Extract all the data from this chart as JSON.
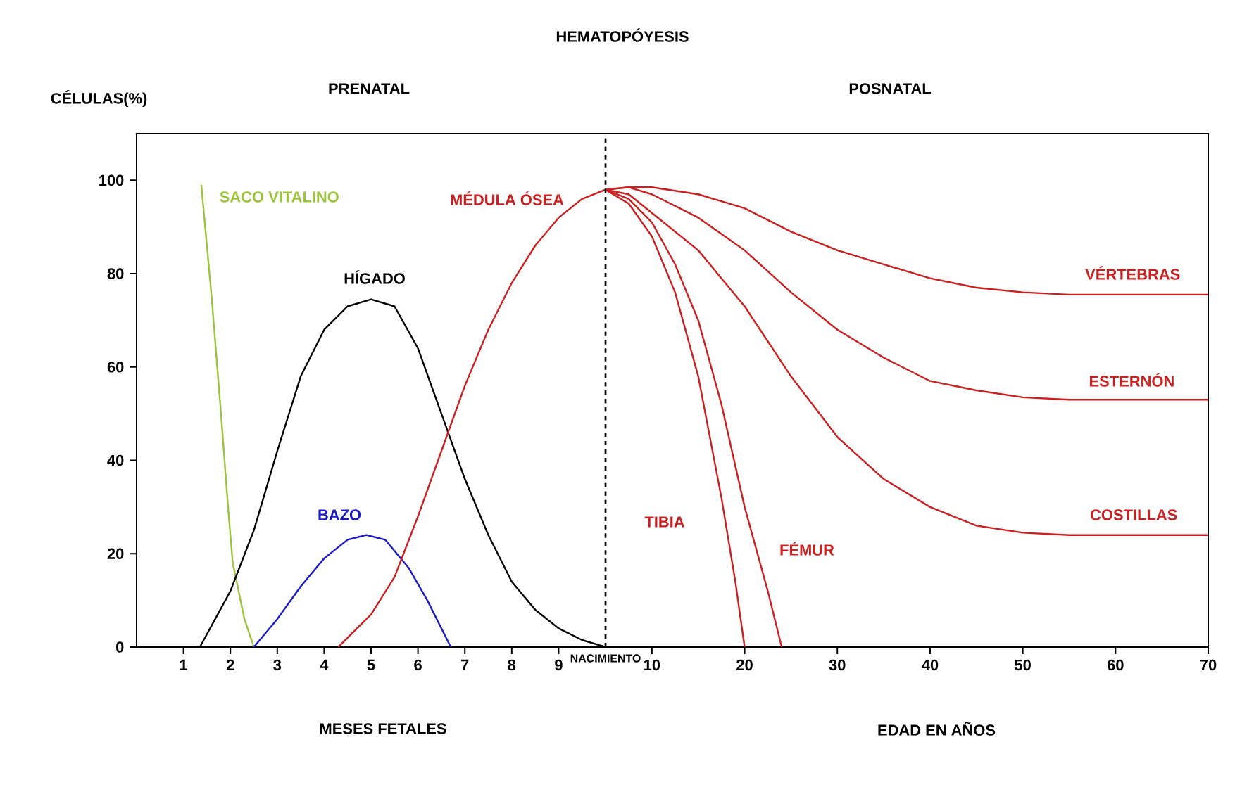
{
  "chart_data": [
    {
      "type": "line",
      "title": "HEMATOPÓYESIS",
      "ylabel": "CÉLULAS(%)",
      "xlim": [
        0,
        10
      ],
      "ylim": [
        0,
        110
      ],
      "xticks": [
        1,
        2,
        3,
        4,
        5,
        6,
        7,
        8,
        9
      ],
      "yticks": [
        0,
        20,
        40,
        60,
        80,
        100
      ],
      "ref_lines": [
        {
          "axis": "x",
          "value": 10,
          "label": "NACIMIENTO",
          "line_style": "dashed",
          "color": "#000000"
        }
      ],
      "annotations": [
        "PRENATAL",
        "MESES FETALES"
      ],
      "series": [
        {
          "name": "SACO VITALINO",
          "color": "#9bc43c",
          "x": [
            1.38,
            1.6,
            1.8,
            1.95,
            2.05,
            2.3,
            2.5
          ],
          "values": [
            99,
            75,
            50,
            30,
            18,
            6,
            0
          ]
        },
        {
          "name": "HÍGADO",
          "color": "#000000",
          "x": [
            1.35,
            2,
            2.5,
            3,
            3.5,
            4,
            4.5,
            5,
            5.5,
            6,
            6.5,
            7,
            7.5,
            8,
            8.5,
            9,
            9.5,
            10
          ],
          "values": [
            0,
            12,
            25,
            42,
            58,
            68,
            73,
            74.5,
            73,
            64,
            50,
            36,
            24,
            14,
            8,
            4,
            1.5,
            0
          ]
        },
        {
          "name": "BAZO",
          "color": "#1a1acc",
          "x": [
            2.5,
            3,
            3.5,
            4,
            4.5,
            4.9,
            5.3,
            5.8,
            6.2,
            6.7
          ],
          "values": [
            0,
            6,
            13,
            19,
            23,
            24,
            23,
            17,
            10,
            0
          ]
        },
        {
          "name": "MÉDULA ÓSEA",
          "color": "#cc1f1f",
          "x": [
            4.3,
            5,
            5.5,
            6,
            6.5,
            7,
            7.5,
            8,
            8.5,
            9,
            9.5,
            10
          ],
          "values": [
            0,
            7,
            15,
            28,
            42,
            56,
            68,
            78,
            86,
            92,
            96,
            98
          ]
        }
      ]
    },
    {
      "type": "line",
      "xlim": [
        5,
        70
      ],
      "ylim": [
        0,
        110
      ],
      "tick_labels": "x",
      "xticks": [
        10,
        20,
        30,
        40,
        50,
        60,
        70
      ],
      "ref_lines": [
        {
          "axis": "x",
          "value": 5,
          "line_style": "dashed",
          "color": "#000000"
        }
      ],
      "annotations": [
        "POSNATAL",
        "EDAD EN AÑOS"
      ],
      "series": [
        {
          "name": "VÉRTEBRAS",
          "color": "#cc1f1f",
          "x": [
            5,
            7.5,
            10,
            15,
            20,
            25,
            30,
            35,
            40,
            45,
            50,
            55,
            60,
            70
          ],
          "values": [
            98,
            98.5,
            98.5,
            97,
            94,
            89,
            85,
            82,
            79,
            77,
            76,
            75.5,
            75.5,
            75.5
          ]
        },
        {
          "name": "ESTERNÓN",
          "color": "#cc1f1f",
          "x": [
            5,
            7.5,
            10,
            15,
            20,
            25,
            30,
            35,
            40,
            45,
            50,
            55,
            70
          ],
          "values": [
            98,
            98.5,
            97,
            92,
            85,
            76,
            68,
            62,
            57,
            55,
            53.5,
            53,
            53
          ]
        },
        {
          "name": "COSTILLAS",
          "color": "#cc1f1f",
          "x": [
            5,
            7.5,
            10,
            15,
            20,
            25,
            30,
            35,
            40,
            45,
            50,
            55,
            60,
            70
          ],
          "values": [
            98,
            97,
            93,
            85,
            73,
            58,
            45,
            36,
            30,
            26,
            24.5,
            24,
            24,
            24
          ]
        },
        {
          "name": "TIBIA",
          "color": "#cc1f1f",
          "x": [
            5,
            7.5,
            10,
            12.5,
            15,
            17.5,
            19,
            20
          ],
          "values": [
            98,
            95,
            88,
            76,
            58,
            32,
            14,
            0
          ]
        },
        {
          "name": "FÉMUR",
          "color": "#cc1f1f",
          "x": [
            5,
            7.5,
            10,
            12.5,
            15,
            17.5,
            20,
            22.5,
            24
          ],
          "values": [
            98,
            96,
            91,
            82,
            70,
            52,
            30,
            12,
            0
          ]
        }
      ]
    }
  ]
}
